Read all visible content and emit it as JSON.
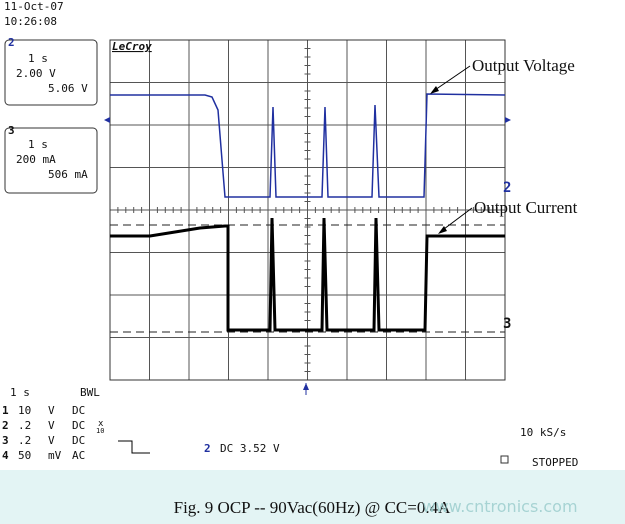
{
  "header": {
    "date": "11-Oct-07",
    "time": "10:26:08"
  },
  "channels": [
    {
      "id": "2",
      "timebase": "1 s",
      "scale": "2.00 V",
      "value": "5.06 V"
    },
    {
      "id": "3",
      "timebase": "1 s",
      "scale": "200 mA",
      "value": "506 mA"
    }
  ],
  "brand": "LeCroy",
  "annotations": {
    "voltage": "Output Voltage",
    "current": "Output Current"
  },
  "trace_markers": [
    "2",
    "3"
  ],
  "footer": {
    "timebase": "1 s",
    "bandwidth": "BWL",
    "rows": [
      {
        "ch": "1",
        "scale": "10",
        "unit": "V",
        "coupling": "DC"
      },
      {
        "ch": "2",
        "scale": ".2",
        "unit": "V",
        "coupling": "DC",
        "probe": {
          "mark": "x",
          "factor": "10"
        }
      },
      {
        "ch": "3",
        "scale": ".2",
        "unit": "V",
        "coupling": "DC"
      },
      {
        "ch": "4",
        "scale": "50",
        "unit": "mV",
        "coupling": "AC"
      }
    ],
    "trigger": {
      "ch": "2",
      "setting": "DC 3.52 V"
    },
    "sample_rate": "10 kS/s",
    "status": "STOPPED"
  },
  "caption": "Fig. 9  OCP  -- 90Vac(60Hz) @ CC=0.4A",
  "watermark": "www.cntronics.com"
}
